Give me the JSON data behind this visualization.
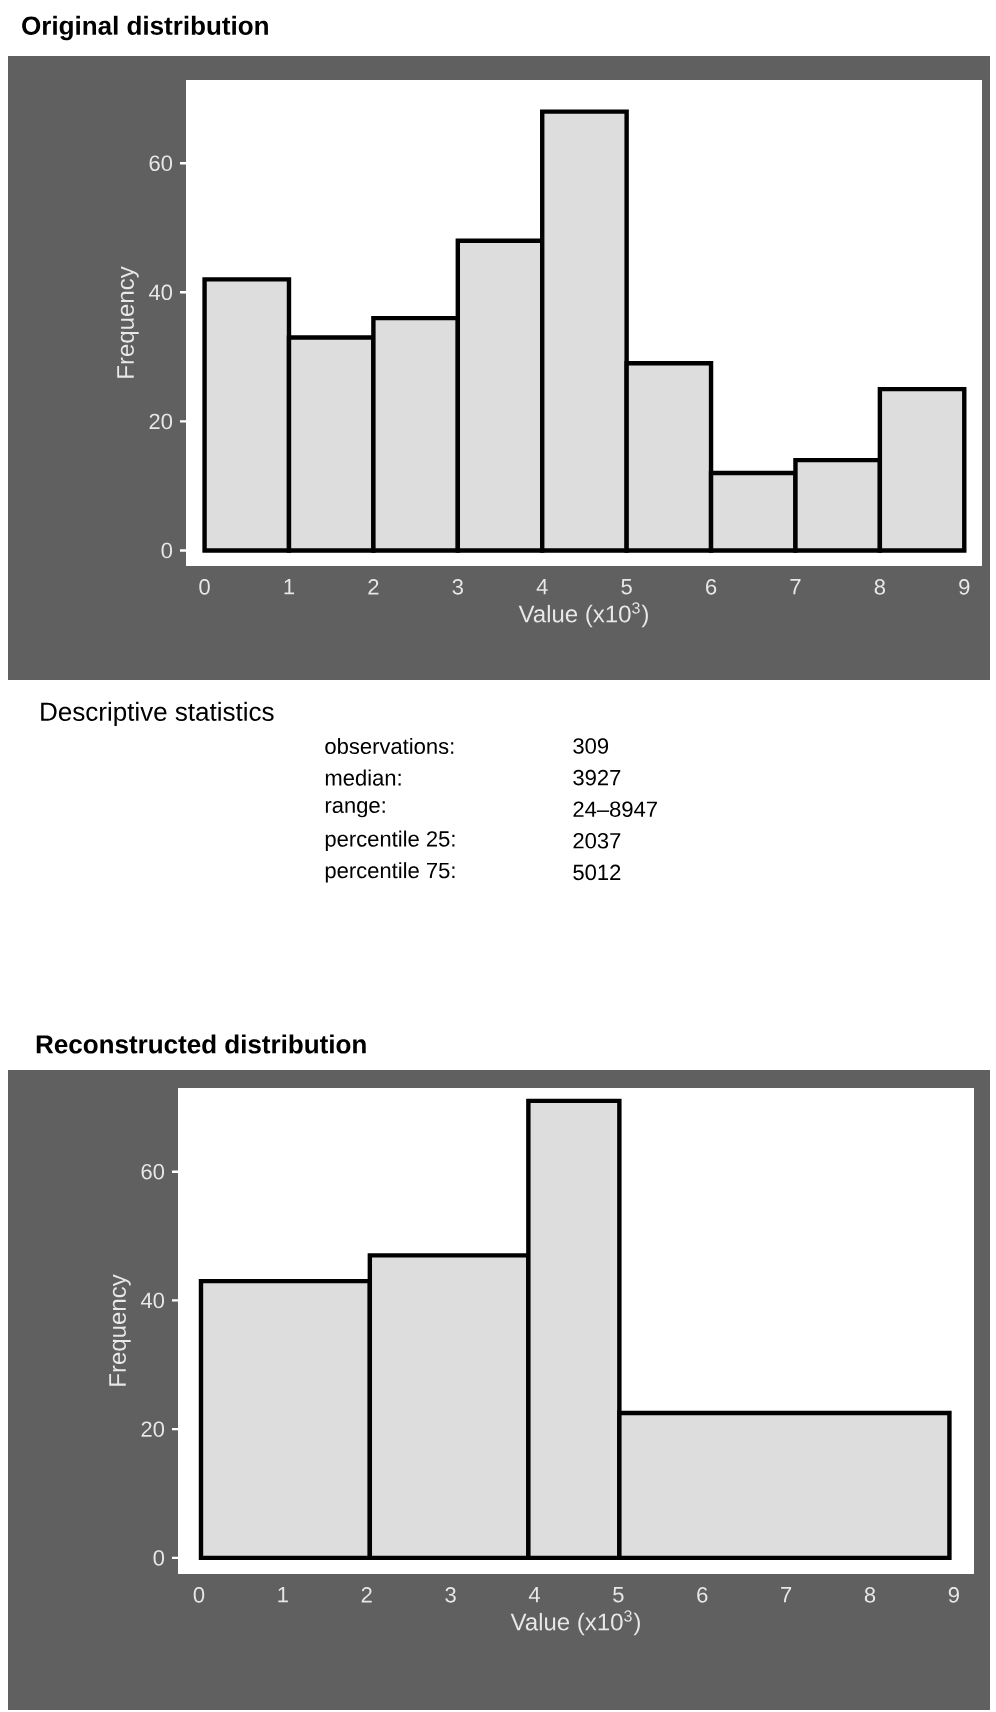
{
  "chart_data": [
    {
      "type": "histogram",
      "title": "Original distribution",
      "xlabel": "Value (x10$^{3}$)",
      "ylabel": "Frequency",
      "color": "#dddddd",
      "bins": [
        0,
        1,
        2,
        3,
        4,
        5,
        6,
        7,
        8,
        9
      ],
      "values": [
        42,
        33,
        36,
        48,
        68,
        29,
        12,
        14,
        25
      ],
      "xlim": [
        -0.22,
        9.21
      ],
      "ylim": [
        -2.4,
        72.9
      ],
      "xticks": [
        0,
        1,
        2,
        3,
        4,
        5,
        6,
        7,
        8,
        9
      ],
      "yticks": [
        0,
        20,
        40,
        60
      ]
    },
    {
      "type": "other",
      "title": "Descriptive statistics",
      "annotations": [
        "observations:",
        "309",
        "median:",
        "3927",
        "range:",
        "24–8947",
        "percentile 25:",
        "2037",
        "percentile 75:",
        "5012"
      ]
    },
    {
      "type": "histogram",
      "title": "Reconstructed distribution",
      "xlabel": "Value (x10$^{3}$)",
      "ylabel": "Frequency",
      "color": "#dddddd",
      "bins": [
        0.024,
        2.037,
        3.927,
        5.012,
        8.947
      ],
      "values": [
        43,
        47,
        71,
        22.5
      ],
      "xlim": [
        -0.25,
        9.24
      ],
      "ylim": [
        -2.5,
        73.0
      ],
      "xticks": [
        0,
        1,
        2,
        3,
        4,
        5,
        6,
        7,
        8,
        9
      ],
      "yticks": [
        0,
        20,
        40,
        60
      ]
    }
  ]
}
